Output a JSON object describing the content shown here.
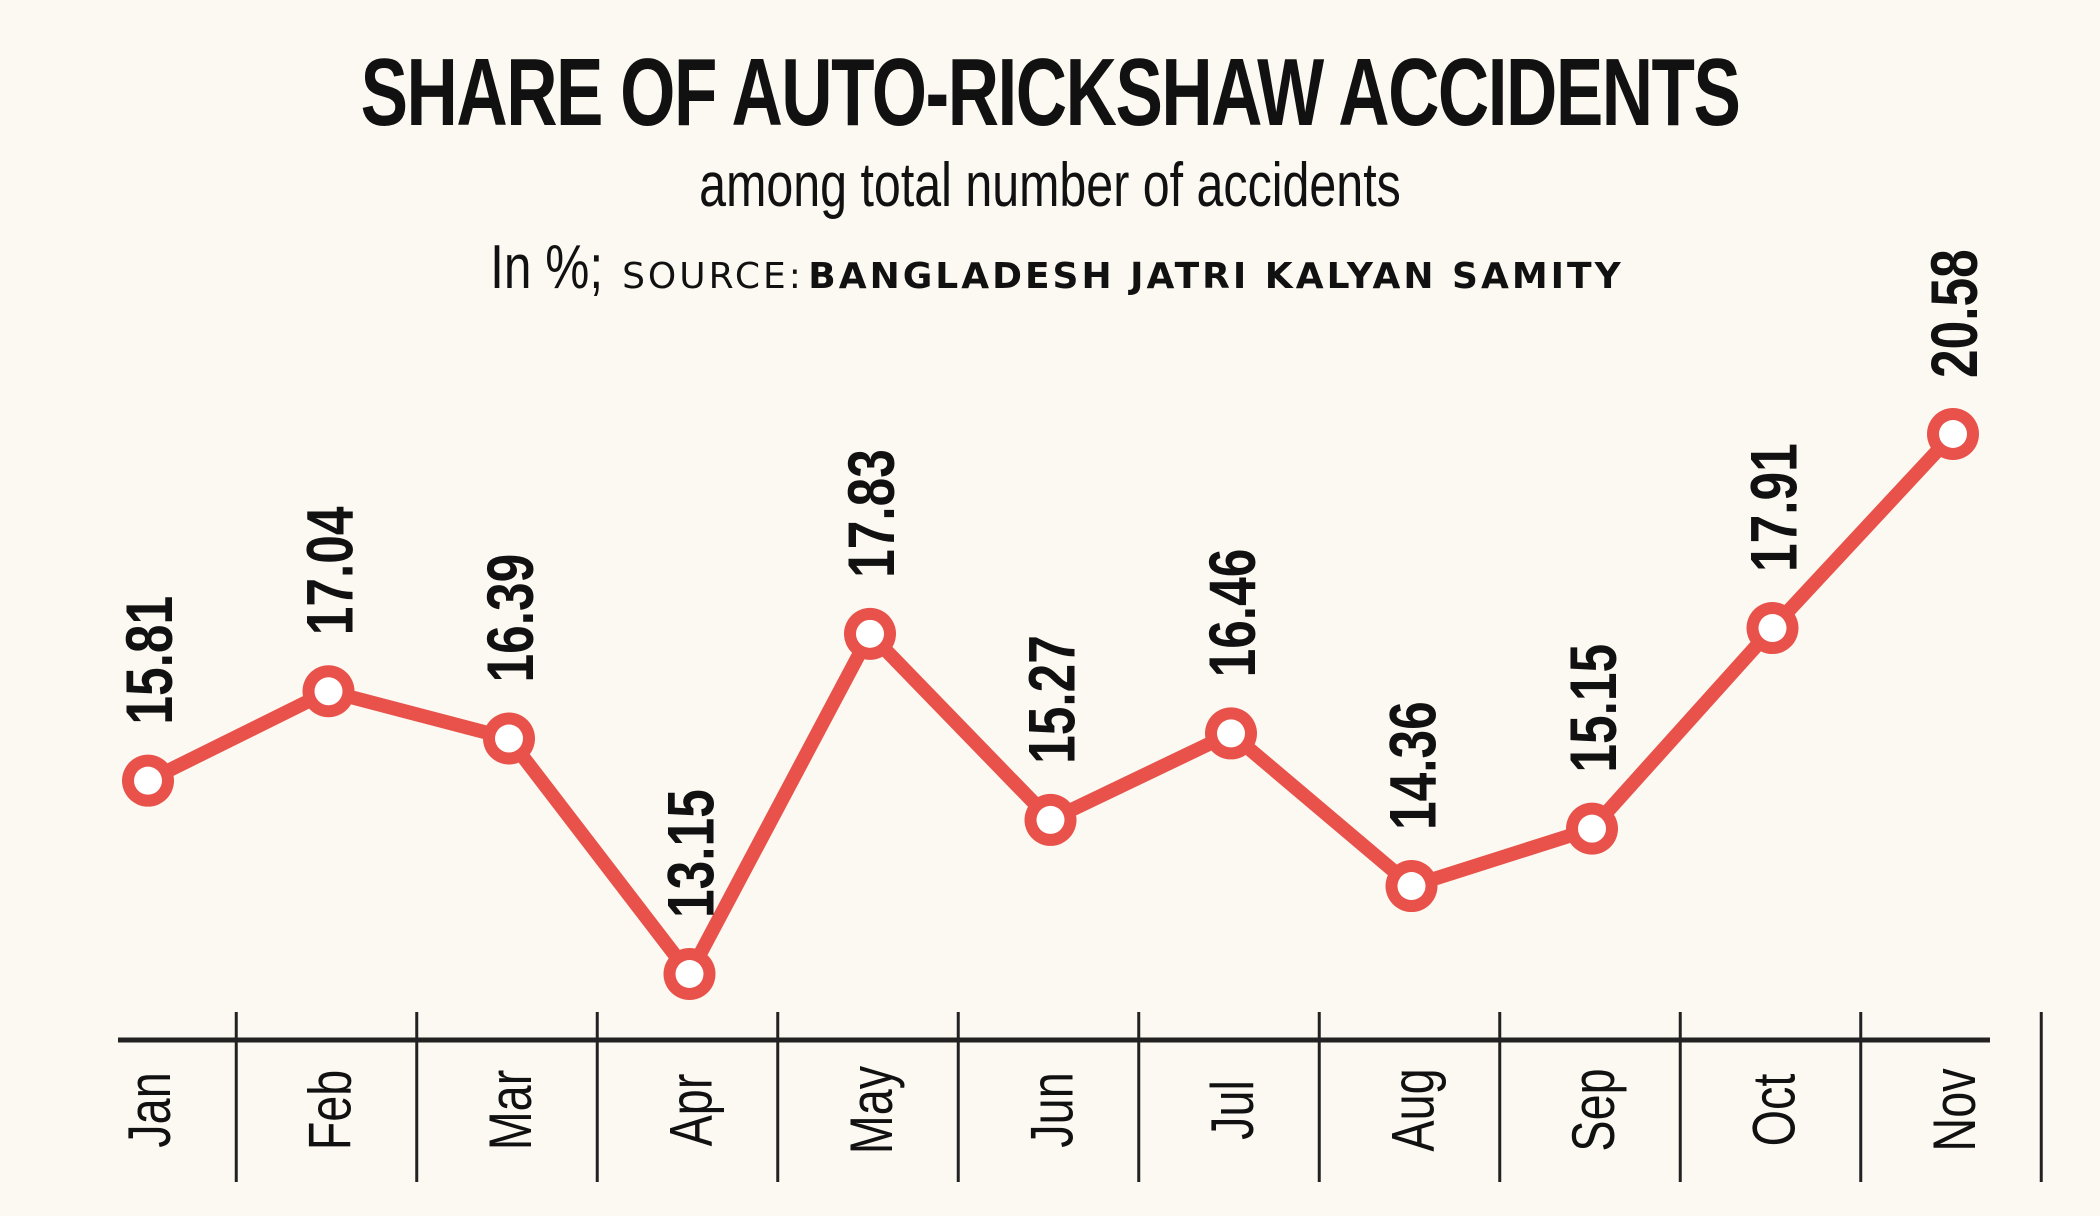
{
  "chart_data": {
    "type": "line",
    "title": "SHARE OF AUTO-RICKSHAW ACCIDENTS",
    "subtitle": "among total number of accidents",
    "unit_label": "In %;",
    "source_prefix": "SOURCE:",
    "source": "BANGLADESH JATRI KALYAN SAMITY",
    "categories": [
      "Jan",
      "Feb",
      "Mar",
      "Apr",
      "May",
      "Jun",
      "Jul",
      "Aug",
      "Sep",
      "Oct",
      "Nov"
    ],
    "series": [
      {
        "values": [
          15.81,
          17.04,
          16.39,
          13.15,
          17.83,
          15.27,
          16.46,
          14.36,
          15.15,
          17.91,
          20.58
        ]
      }
    ],
    "data_labels": [
      "15.81",
      "17.04",
      "16.39",
      "13.15",
      "17.83",
      "15.27",
      "16.46",
      "14.36",
      "15.15",
      "17.91",
      "20.58"
    ],
    "ylim": [
      13.15,
      20.58
    ],
    "grid": false,
    "line_color": "#e8524a",
    "marker_fill": "#ffffff",
    "axis_color": "#222222"
  }
}
